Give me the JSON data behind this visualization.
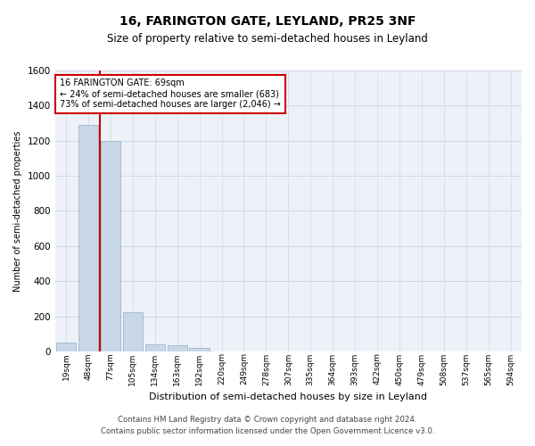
{
  "title": "16, FARINGTON GATE, LEYLAND, PR25 3NF",
  "subtitle": "Size of property relative to semi-detached houses in Leyland",
  "xlabel": "Distribution of semi-detached houses by size in Leyland",
  "ylabel": "Number of semi-detached properties",
  "footer_line1": "Contains HM Land Registry data © Crown copyright and database right 2024.",
  "footer_line2": "Contains public sector information licensed under the Open Government Licence v3.0.",
  "annotation_title": "16 FARINGTON GATE: 69sqm",
  "annotation_line1": "← 24% of semi-detached houses are smaller (683)",
  "annotation_line2": "73% of semi-detached houses are larger (2,046) →",
  "bar_labels": [
    "19sqm",
    "48sqm",
    "77sqm",
    "105sqm",
    "134sqm",
    "163sqm",
    "192sqm",
    "220sqm",
    "249sqm",
    "278sqm",
    "307sqm",
    "335sqm",
    "364sqm",
    "393sqm",
    "422sqm",
    "450sqm",
    "479sqm",
    "508sqm",
    "537sqm",
    "565sqm",
    "594sqm"
  ],
  "bar_values": [
    50,
    1290,
    1200,
    225,
    40,
    35,
    20,
    0,
    0,
    0,
    0,
    0,
    0,
    0,
    0,
    0,
    0,
    0,
    0,
    0,
    0
  ],
  "bar_color": "#c8d8e8",
  "bar_edge_color": "#a0b8cc",
  "highlight_color": "#cc0000",
  "ylim": [
    0,
    1600
  ],
  "yticks": [
    0,
    200,
    400,
    600,
    800,
    1000,
    1200,
    1400,
    1600
  ],
  "annotation_box_color": "#ffffff",
  "annotation_box_edge": "#cc0000",
  "grid_color": "#d0d8e8",
  "background_color": "#eef2f8"
}
